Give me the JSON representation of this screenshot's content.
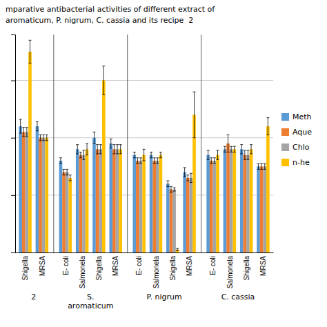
{
  "chart_data": {
    "type": "bar",
    "title": "mparative antibacterial activities of different extract of",
    "subtitle": "aromaticum, P. nigrum, C. cassia and its recipe  2",
    "categories": [
      "Shigella",
      "MRSA",
      "E- coli",
      "Salmonela",
      "Shigella",
      "MRSA",
      "E- coli",
      "Salmonela",
      "Shigella",
      "MRSA",
      "E- coli",
      "Salmonela",
      "Shigella",
      "MRSA"
    ],
    "category_groups": [
      "2",
      "2",
      "S.\naromaticum",
      "S.\naromaticum",
      "S.\naromaticum",
      "S.\naromaticum",
      "P. nigrum",
      "P. nigrum",
      "P. nigrum",
      "P. nigrum",
      "C. cassia",
      "C. cassia",
      "C. cassia",
      "C. cassia"
    ],
    "series": [
      {
        "name": "Meth",
        "color": "#5B9BD5",
        "values": [
          22,
          22,
          16,
          18,
          20,
          19,
          17,
          17,
          12,
          14,
          17,
          18,
          18,
          15
        ],
        "errors": [
          1.2,
          0.8,
          0.5,
          0.8,
          1.0,
          0.8,
          0.5,
          0.5,
          0.5,
          0.8,
          0.8,
          0.5,
          0.8,
          0.5
        ]
      },
      {
        "name": "Aque",
        "color": "#ED7D31",
        "values": [
          21,
          20,
          14,
          17,
          18,
          18,
          16,
          16,
          11,
          13,
          16,
          19,
          17,
          15
        ],
        "errors": [
          0.8,
          0.5,
          0.5,
          0.5,
          0.8,
          0.8,
          0.5,
          0.5,
          0.5,
          0.5,
          0.5,
          1.5,
          0.8,
          0.5
        ]
      },
      {
        "name": "Chlo",
        "color": "#A5A5A5",
        "values": [
          21,
          20,
          14,
          17,
          18,
          18,
          16,
          16,
          11,
          13,
          16,
          18,
          17,
          15
        ],
        "errors": [
          0.8,
          0.5,
          0.5,
          0.8,
          0.8,
          0.8,
          0.5,
          0.5,
          0.3,
          0.8,
          0.5,
          0.5,
          0.8,
          0.5
        ]
      },
      {
        "name": "n-he",
        "color": "#FFC000",
        "values": [
          35,
          20,
          13,
          18,
          30,
          18,
          17,
          17,
          0.5,
          24,
          17,
          18,
          18,
          22
        ],
        "errors": [
          2.0,
          0.5,
          0.5,
          1.0,
          2.5,
          0.8,
          1.0,
          0.5,
          0.2,
          4.0,
          0.8,
          0.5,
          0.8,
          1.5
        ]
      }
    ],
    "ylim": [
      0,
      38
    ],
    "yticks": [
      10,
      20,
      30
    ],
    "grid": true,
    "tick_labels": "x",
    "legend": "right"
  }
}
